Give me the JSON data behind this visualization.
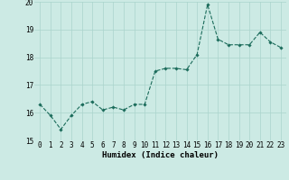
{
  "x": [
    0,
    1,
    2,
    3,
    4,
    5,
    6,
    7,
    8,
    9,
    10,
    11,
    12,
    13,
    14,
    15,
    16,
    17,
    18,
    19,
    20,
    21,
    22,
    23
  ],
  "y": [
    16.3,
    15.9,
    15.4,
    15.9,
    16.3,
    16.4,
    16.1,
    16.2,
    16.1,
    16.3,
    16.3,
    17.5,
    17.6,
    17.6,
    17.55,
    18.1,
    19.9,
    18.65,
    18.45,
    18.45,
    18.45,
    18.9,
    18.55,
    18.35
  ],
  "line_color": "#1a6b5a",
  "marker": "D",
  "marker_size": 1.8,
  "line_width": 0.8,
  "xlabel": "Humidex (Indice chaleur)",
  "ylim": [
    15,
    20
  ],
  "xlim_min": -0.5,
  "xlim_max": 23.5,
  "yticks": [
    15,
    16,
    17,
    18,
    19,
    20
  ],
  "xticks": [
    0,
    1,
    2,
    3,
    4,
    5,
    6,
    7,
    8,
    9,
    10,
    11,
    12,
    13,
    14,
    15,
    16,
    17,
    18,
    19,
    20,
    21,
    22,
    23
  ],
  "bg_color": "#cceae4",
  "grid_color": "#aad4cc",
  "xlabel_fontsize": 6.5,
  "tick_fontsize": 5.5
}
